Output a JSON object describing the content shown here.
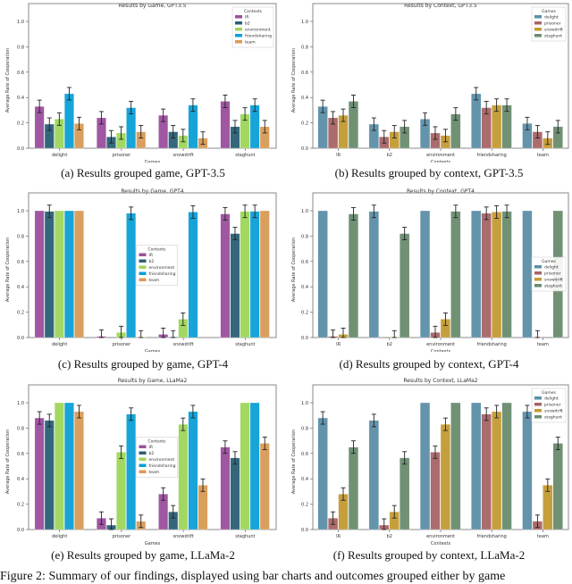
{
  "colors": {
    "contexts": {
      "IR": "#9b4f9e",
      "b2": "#2a5f75",
      "environment": "#9ed65a",
      "friendsharing": "#0aa0d8",
      "team": "#d99a55"
    },
    "games": {
      "delight": "#5b8fa8",
      "prisoner": "#a86466",
      "snowdrift": "#c49a33",
      "staghunt": "#6a8c6e"
    }
  },
  "captions": {
    "a": "(a) Results grouped game, GPT-3.5",
    "b": "(b) Results grouped by context, GPT-3.5",
    "c": "(c) Results grouped by game, GPT-4",
    "d": "(d) Results grouped by context, GPT-4",
    "e": "(e) Results grouped by game, LLaMa-2",
    "f": "(f) Results grouped by context, LLaMa-2",
    "figure": "Figure 2: Summary of our findings, displayed using bar charts and outcomes grouped either by game"
  },
  "chart_data": [
    {
      "id": "a",
      "type": "bar",
      "title": "Results by Game, GPT3.5",
      "xlabel": "Games",
      "ylabel": "Average Rate of Cooperation",
      "ylim": [
        0,
        1.0
      ],
      "yticks": [
        "0.0",
        "0.2",
        "0.4",
        "0.6",
        "0.8",
        "1.0"
      ],
      "categories": [
        "delight",
        "prisoner",
        "snowdrift",
        "staghunt"
      ],
      "legend_title": "Contexts",
      "legend_position": "top-right",
      "palette": "contexts",
      "series": [
        {
          "name": "IR",
          "values": [
            0.33,
            0.24,
            0.26,
            0.37
          ]
        },
        {
          "name": "b2",
          "values": [
            0.19,
            0.09,
            0.13,
            0.17
          ]
        },
        {
          "name": "environment",
          "values": [
            0.23,
            0.12,
            0.1,
            0.27
          ]
        },
        {
          "name": "friendsharing",
          "values": [
            0.43,
            0.32,
            0.34,
            0.34
          ]
        },
        {
          "name": "team",
          "values": [
            0.195,
            0.13,
            0.08,
            0.17
          ]
        }
      ]
    },
    {
      "id": "b",
      "type": "bar",
      "title": "Results by Context, GPT3.5",
      "xlabel": "Contexts",
      "ylabel": "Average Rate of Cooperation",
      "ylim": [
        0,
        1.0
      ],
      "yticks": [
        "0.0",
        "0.2",
        "0.4",
        "0.6",
        "0.8",
        "1.0"
      ],
      "categories": [
        "IR",
        "b2",
        "environment",
        "friendsharing",
        "team"
      ],
      "legend_title": "Games",
      "legend_position": "top-right",
      "palette": "games",
      "series": [
        {
          "name": "delight",
          "values": [
            0.33,
            0.19,
            0.23,
            0.43,
            0.195
          ]
        },
        {
          "name": "prisoner",
          "values": [
            0.24,
            0.09,
            0.12,
            0.32,
            0.13
          ]
        },
        {
          "name": "snowdrift",
          "values": [
            0.26,
            0.13,
            0.1,
            0.34,
            0.08
          ]
        },
        {
          "name": "staghunt",
          "values": [
            0.37,
            0.17,
            0.27,
            0.34,
            0.17
          ]
        }
      ]
    },
    {
      "id": "c",
      "type": "bar",
      "title": "Results by Game, GPT4",
      "xlabel": "Games",
      "ylabel": "Average Rate of Cooperation",
      "ylim": [
        0,
        1.0
      ],
      "yticks": [
        "0.0",
        "0.2",
        "0.4",
        "0.6",
        "0.8",
        "1.0"
      ],
      "categories": [
        "delight",
        "prisoner",
        "snowdrift",
        "staghunt"
      ],
      "legend_title": "Contexts",
      "legend_position": "center",
      "palette": "contexts",
      "series": [
        {
          "name": "IR",
          "values": [
            1.0,
            0.01,
            0.025,
            0.975
          ]
        },
        {
          "name": "b2",
          "values": [
            0.995,
            0.0,
            0.005,
            0.82
          ]
        },
        {
          "name": "environment",
          "values": [
            1.0,
            0.04,
            0.145,
            0.995
          ]
        },
        {
          "name": "friendsharing",
          "values": [
            1.0,
            0.98,
            0.99,
            0.995
          ]
        },
        {
          "name": "team",
          "values": [
            1.0,
            0.005,
            0.0,
            1.0
          ]
        }
      ]
    },
    {
      "id": "d",
      "type": "bar",
      "title": "Results by Context, GPT4",
      "xlabel": "Contexts",
      "ylabel": "Average Rate of Cooperation",
      "ylim": [
        0,
        1.0
      ],
      "yticks": [
        "0.0",
        "0.2",
        "0.4",
        "0.6",
        "0.8",
        "1.0"
      ],
      "categories": [
        "IR",
        "b2",
        "environment",
        "friendsharing",
        "team"
      ],
      "legend_title": "Games",
      "legend_position": "center-right",
      "palette": "games",
      "series": [
        {
          "name": "delight",
          "values": [
            1.0,
            0.995,
            1.0,
            1.0,
            1.0
          ]
        },
        {
          "name": "prisoner",
          "values": [
            0.01,
            0.0,
            0.04,
            0.98,
            0.005
          ]
        },
        {
          "name": "snowdrift",
          "values": [
            0.025,
            0.005,
            0.145,
            0.99,
            0.0
          ]
        },
        {
          "name": "staghunt",
          "values": [
            0.975,
            0.82,
            0.995,
            0.995,
            1.0
          ]
        }
      ]
    },
    {
      "id": "e",
      "type": "bar",
      "title": "Results by Game, LLaMa2",
      "xlabel": "Games",
      "ylabel": "Average Rate of Cooperation",
      "ylim": [
        0,
        1.0
      ],
      "yticks": [
        "0.0",
        "0.2",
        "0.4",
        "0.6",
        "0.8",
        "1.0"
      ],
      "categories": [
        "delight",
        "prisoner",
        "snowdrift",
        "staghunt"
      ],
      "legend_title": "Contexts",
      "legend_position": "center",
      "palette": "contexts",
      "series": [
        {
          "name": "IR",
          "values": [
            0.88,
            0.09,
            0.28,
            0.65
          ]
        },
        {
          "name": "b2",
          "values": [
            0.86,
            0.035,
            0.14,
            0.565
          ]
        },
        {
          "name": "environment",
          "values": [
            1.0,
            0.61,
            0.83,
            1.0
          ]
        },
        {
          "name": "friendsharing",
          "values": [
            1.0,
            0.91,
            0.93,
            1.0
          ]
        },
        {
          "name": "team",
          "values": [
            0.93,
            0.065,
            0.35,
            0.68
          ]
        }
      ]
    },
    {
      "id": "f",
      "type": "bar",
      "title": "Results by Context, LLaMa2",
      "xlabel": "Contexts",
      "ylabel": "Average Rate of Cooperation",
      "ylim": [
        0,
        1.0
      ],
      "yticks": [
        "0.0",
        "0.2",
        "0.4",
        "0.6",
        "0.8",
        "1.0"
      ],
      "categories": [
        "IR",
        "b2",
        "environment",
        "friendsharing",
        "team"
      ],
      "legend_title": "Games",
      "legend_position": "top-right",
      "palette": "games",
      "series": [
        {
          "name": "delight",
          "values": [
            0.88,
            0.86,
            1.0,
            1.0,
            0.93
          ]
        },
        {
          "name": "prisoner",
          "values": [
            0.09,
            0.035,
            0.61,
            0.91,
            0.065
          ]
        },
        {
          "name": "snowdrift",
          "values": [
            0.28,
            0.14,
            0.83,
            0.93,
            0.35
          ]
        },
        {
          "name": "staghunt",
          "values": [
            0.65,
            0.565,
            1.0,
            1.0,
            0.68
          ]
        }
      ]
    }
  ]
}
